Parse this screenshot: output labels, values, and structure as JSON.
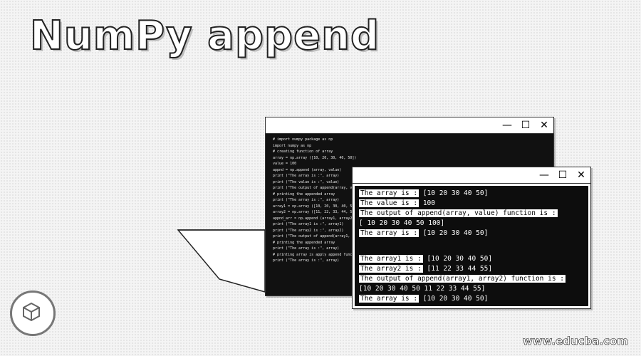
{
  "page": {
    "title": "NumPy append",
    "watermark": "www.educba.com"
  },
  "window_controls": {
    "minimize": "—",
    "maximize": "☐",
    "close": "✕"
  },
  "code_window": {
    "lines": [
      "# import numpy package as np",
      "import numpy as np",
      "# creating function of array",
      "array = np.array ([10, 20, 30, 40, 50])",
      "value = 100",
      "appnd = np.append (array, value)",
      "print (\"The array is :\", array)",
      "print (\"The value is :\", value)",
      "print (\"The output of append(array, value) function is :\", appnd)",
      "# printing the appended array",
      "print (\"The array is :\", array)",
      "array1 = np.array ([10, 20, 30, 40, 50])",
      "array2 = np.array ([11, 22, 33, 44, 55])",
      "appnd_arr = np.append (array1, array2)",
      "print (\"The array1 is :\", array1)",
      "print (\"The array2 is :\", array2)",
      "print (\"The output of append(array1, array2) function is :\", appnd_arr)",
      "# printing the appended array",
      "print (\"The array is :\", array)",
      "# printing array is apply append function",
      "print (\"The array is :\", array)"
    ]
  },
  "output_window": {
    "lines": [
      {
        "label": "The array is :",
        "value": "[10 20 30 40 50]"
      },
      {
        "label": "The value is :",
        "value": "100"
      },
      {
        "label": "The output of append(array, value) function is :",
        "value": ""
      },
      {
        "label": "",
        "value": "[ 10  20  30  40  50 100]"
      },
      {
        "label": "The array is :",
        "value": "[10 20 30 40 50]"
      },
      {
        "label": "The array1 is :",
        "value": "[10 20 30 40 50]"
      },
      {
        "label": "The array2 is :",
        "value": "[11 22 33 44 55]"
      },
      {
        "label": "The output of append(array1, array2) function is :",
        "value": ""
      },
      {
        "label": "",
        "value": "[10 20 30 40 50 11 22 33 44 55]"
      },
      {
        "label": "The array is :",
        "value": "[10 20 30 40 50]"
      }
    ]
  }
}
